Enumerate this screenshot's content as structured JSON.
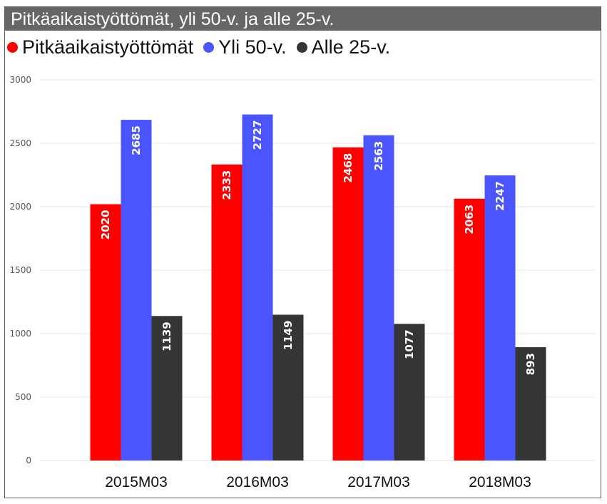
{
  "title": "Pitkäaikaistyöttömät, yli 50-v.  ja alle 25-v.",
  "legend": [
    {
      "label": "Pitkäaikaistyöttömät",
      "color": "#FF0000"
    },
    {
      "label": "Yli 50-v.",
      "color": "#4B55FF"
    },
    {
      "label": "Alle 25-v.",
      "color": "#353535"
    }
  ],
  "chart_data": {
    "type": "bar",
    "title": "Pitkäaikaistyöttömät, yli 50-v.  ja alle 25-v.",
    "categories": [
      "2015M03",
      "2016M03",
      "2017M03",
      "2018M03"
    ],
    "series": [
      {
        "name": "Pitkäaikaistyöttömät",
        "values": [
          2020,
          2333,
          2468,
          2063
        ],
        "color": "#FF0000"
      },
      {
        "name": "Yli 50-v.",
        "values": [
          2685,
          2727,
          2563,
          2247
        ],
        "color": "#4B55FF"
      },
      {
        "name": "Alle 25-v.",
        "values": [
          1139,
          1149,
          1077,
          893
        ],
        "color": "#353535"
      }
    ],
    "yticks": [
      0,
      500,
      1000,
      1500,
      2000,
      2500,
      3000
    ],
    "ylim": [
      0,
      3000
    ],
    "xlabel": "",
    "ylabel": "",
    "grid": true,
    "legend_position": "top-left"
  }
}
